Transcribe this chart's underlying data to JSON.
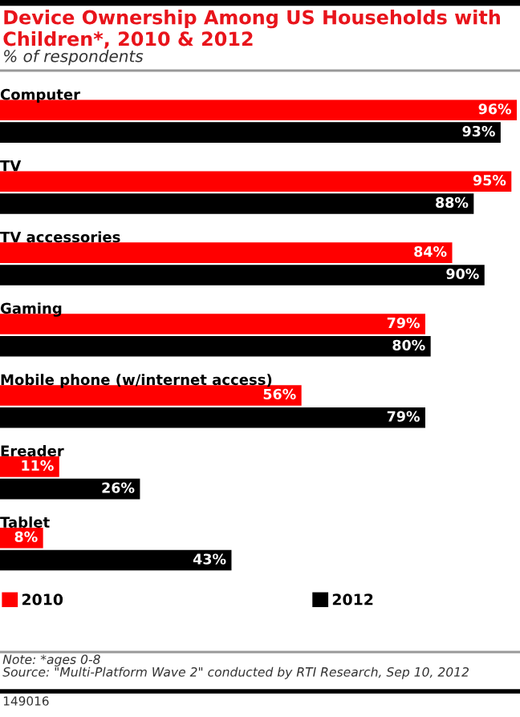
{
  "chart_data": {
    "type": "bar",
    "orientation": "horizontal",
    "title": "Device Ownership Among US Households with Children*, 2010 & 2012",
    "subtitle": "% of respondents",
    "categories": [
      "Computer",
      "TV",
      "TV accessories",
      "Gaming",
      "Mobile phone (w/internet access)",
      "Ereader",
      "Tablet"
    ],
    "series": [
      {
        "name": "2010",
        "color": "#ff0000",
        "values": [
          96,
          95,
          84,
          79,
          56,
          11,
          8
        ],
        "value_labels": [
          "96%",
          "95%",
          "84%",
          "79%",
          "56%",
          "11%",
          "8%"
        ]
      },
      {
        "name": "2012",
        "color": "#000000",
        "values": [
          93,
          88,
          90,
          80,
          79,
          26,
          43
        ],
        "value_labels": [
          "93%",
          "88%",
          "90%",
          "80%",
          "79%",
          "26%",
          "43%"
        ]
      }
    ],
    "legend": "bottom",
    "annotations": [
      "Note: *ages 0-8",
      "Source: \"Multi-Platform Wave 2\" conducted by RTI Research, Sep 10, 2012",
      "149016"
    ]
  }
}
